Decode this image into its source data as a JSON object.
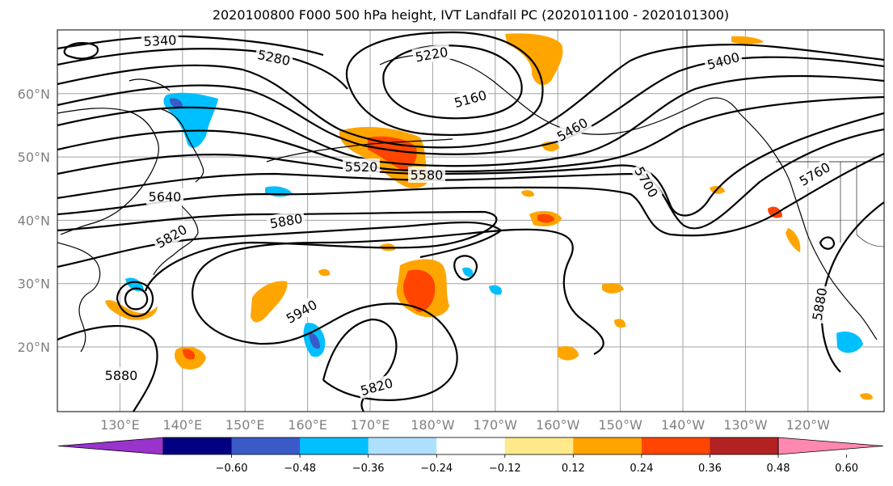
{
  "title": "2020100800 F000 500 hPa height, IVT Landfall PC (2020101100 - 2020101300)",
  "lat_ticks": [
    {
      "lat": 20,
      "label": "20°N"
    },
    {
      "lat": 30,
      "label": "30°N"
    },
    {
      "lat": 40,
      "label": "40°N"
    },
    {
      "lat": 50,
      "label": "50°N"
    },
    {
      "lat": 60,
      "label": "60°N"
    }
  ],
  "lon_ticks": [
    {
      "lon": 130,
      "label": "130°E"
    },
    {
      "lon": 140,
      "label": "140°E"
    },
    {
      "lon": 150,
      "label": "150°E"
    },
    {
      "lon": 160,
      "label": "160°E"
    },
    {
      "lon": 170,
      "label": "170°E"
    },
    {
      "lon": 180,
      "label": "180°W"
    },
    {
      "lon": 190,
      "label": "170°W"
    },
    {
      "lon": 200,
      "label": "160°W"
    },
    {
      "lon": 210,
      "label": "150°W"
    },
    {
      "lon": 220,
      "label": "140°W"
    },
    {
      "lon": 230,
      "label": "130°W"
    },
    {
      "lon": 240,
      "label": "120°W"
    }
  ],
  "contour_labels": [
    "5340",
    "5280",
    "5220",
    "5160",
    "5400",
    "5460",
    "5520",
    "5580",
    "5640",
    "5700",
    "5760",
    "5820",
    "5880",
    "5940",
    "5880",
    "5820",
    "5880"
  ],
  "colorbar": {
    "colors": [
      "#9933cc",
      "#000080",
      "#3a5bc7",
      "#00bfff",
      "#b0e0ff",
      "#ffffff",
      "#ffe98a",
      "#ffa500",
      "#ff4500",
      "#b22222",
      "#ff88b0"
    ],
    "ticks": [
      "−0.60",
      "−0.48",
      "−0.36",
      "−0.24",
      "−0.12",
      "0.12",
      "0.24",
      "0.36",
      "0.48",
      "0.60"
    ]
  }
}
